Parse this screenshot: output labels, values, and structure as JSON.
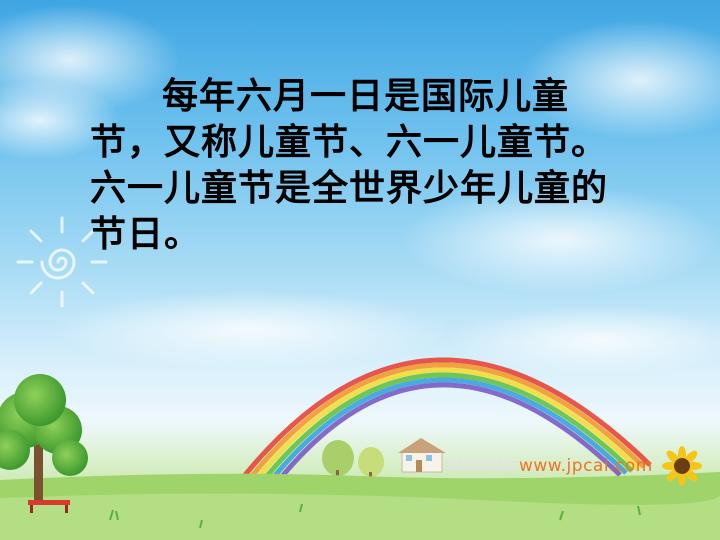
{
  "slide": {
    "paragraph": "每年六月一日是国际儿童节，又称儿童节、六一儿童节。六一儿童节是全世界少年儿童的节日。",
    "watermark": "www.jpcai.com"
  }
}
